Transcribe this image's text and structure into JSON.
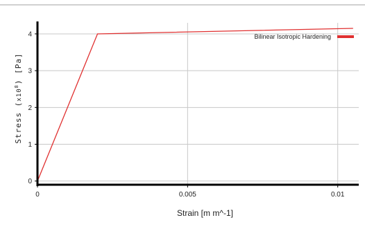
{
  "chart_data": {
    "type": "line",
    "xlabel": "Strain  [m m^-1]",
    "ylabel_prefix": "Stress (",
    "ylabel_scale": "x10",
    "ylabel_exp": "8",
    "ylabel_suffix": ") [Pa]",
    "xlim": [
      0,
      0.0107
    ],
    "ylim": [
      -0.1,
      4.3
    ],
    "x_ticks": [
      0,
      0.005,
      0.01
    ],
    "x_tick_labels": [
      "0",
      "0.005",
      "0.01"
    ],
    "y_ticks": [
      0,
      1,
      2,
      3,
      4
    ],
    "y_tick_labels": [
      "0",
      "1",
      "2",
      "3",
      "4"
    ],
    "grid": true,
    "legend_position": "top-right",
    "series": [
      {
        "name": "Bilinear Isotropic Hardening",
        "color": "#e03030",
        "x": [
          0,
          0.002,
          0.0105
        ],
        "y": [
          0,
          4.0,
          4.15
        ]
      }
    ]
  }
}
